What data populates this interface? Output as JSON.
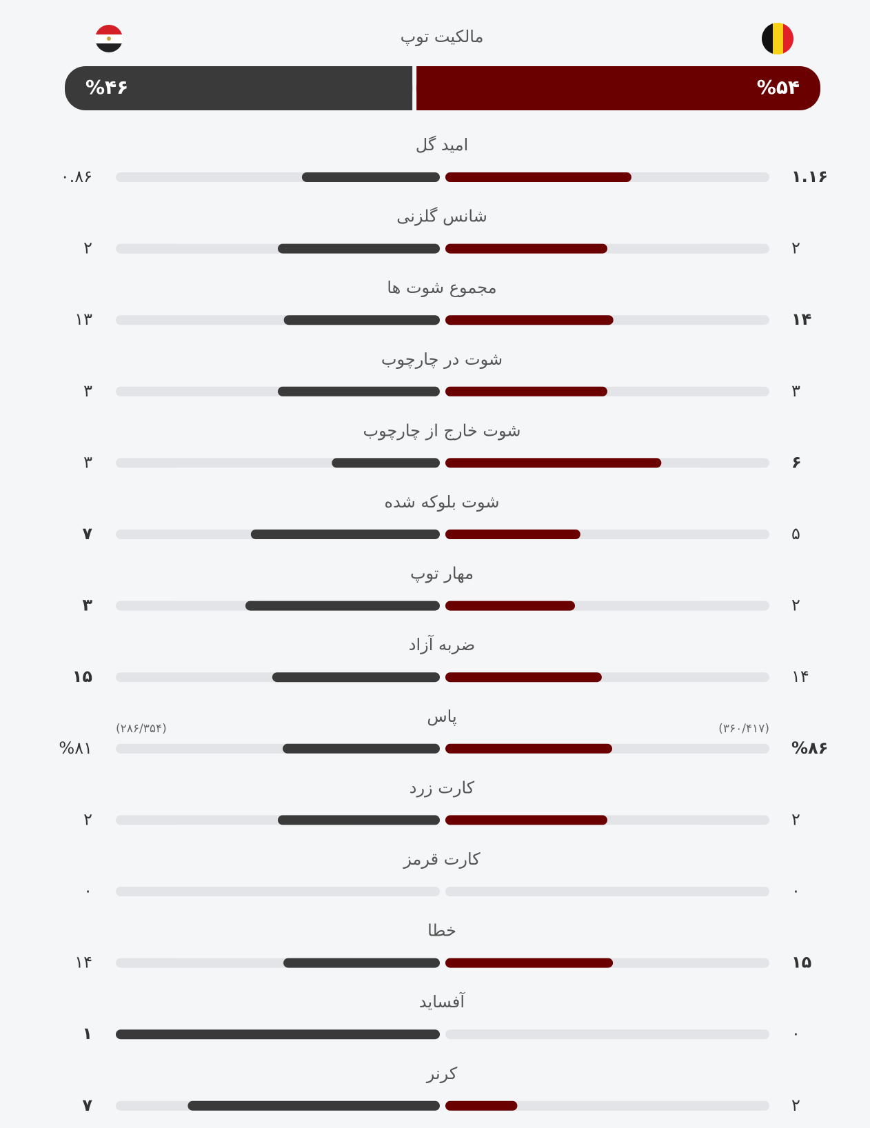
{
  "possession": {
    "title": "مالکیت توپ",
    "home": {
      "value": 54,
      "label": "%۵۴"
    },
    "away": {
      "value": 46,
      "label": "%۴۶"
    }
  },
  "stats": [
    {
      "label": "امید گل",
      "home": {
        "value": 1.16,
        "label": "۱.۱۶"
      },
      "away": {
        "value": 0.86,
        "label": "۰.۸۶"
      }
    },
    {
      "label": "شانس گلزنی",
      "home": {
        "value": 2,
        "label": "۲"
      },
      "away": {
        "value": 2,
        "label": "۲"
      }
    },
    {
      "label": "مجموع شوت ها",
      "home": {
        "value": 14,
        "label": "۱۴"
      },
      "away": {
        "value": 13,
        "label": "۱۳"
      }
    },
    {
      "label": "شوت در چارچوب",
      "home": {
        "value": 3,
        "label": "۳"
      },
      "away": {
        "value": 3,
        "label": "۳"
      }
    },
    {
      "label": "شوت خارج از چارچوب",
      "home": {
        "value": 6,
        "label": "۶"
      },
      "away": {
        "value": 3,
        "label": "۳"
      }
    },
    {
      "label": "شوت بلوکه شده",
      "home": {
        "value": 5,
        "label": "۵"
      },
      "away": {
        "value": 7,
        "label": "۷"
      }
    },
    {
      "label": "مهار توپ",
      "home": {
        "value": 2,
        "label": "۲"
      },
      "away": {
        "value": 3,
        "label": "۳"
      }
    },
    {
      "label": "ضربه آزاد",
      "home": {
        "value": 14,
        "label": "۱۴"
      },
      "away": {
        "value": 15,
        "label": "۱۵"
      }
    },
    {
      "label": "پاس",
      "home": {
        "value": 86,
        "label": "%۸۶",
        "detail": "(۳۶۰/۴۱۷)"
      },
      "away": {
        "value": 81,
        "label": "%۸۱",
        "detail": "(۲۸۶/۳۵۴)"
      }
    },
    {
      "label": "کارت زرد",
      "home": {
        "value": 2,
        "label": "۲"
      },
      "away": {
        "value": 2,
        "label": "۲"
      }
    },
    {
      "label": "کارت قرمز",
      "home": {
        "value": 0,
        "label": "۰"
      },
      "away": {
        "value": 0,
        "label": "۰"
      }
    },
    {
      "label": "خطا",
      "home": {
        "value": 15,
        "label": "۱۵"
      },
      "away": {
        "value": 14,
        "label": "۱۴"
      }
    },
    {
      "label": "آفساید",
      "home": {
        "value": 0,
        "label": "۰"
      },
      "away": {
        "value": 1,
        "label": "۱"
      }
    },
    {
      "label": "کرنر",
      "home": {
        "value": 2,
        "label": "۲"
      },
      "away": {
        "value": 7,
        "label": "۷"
      }
    }
  ]
}
